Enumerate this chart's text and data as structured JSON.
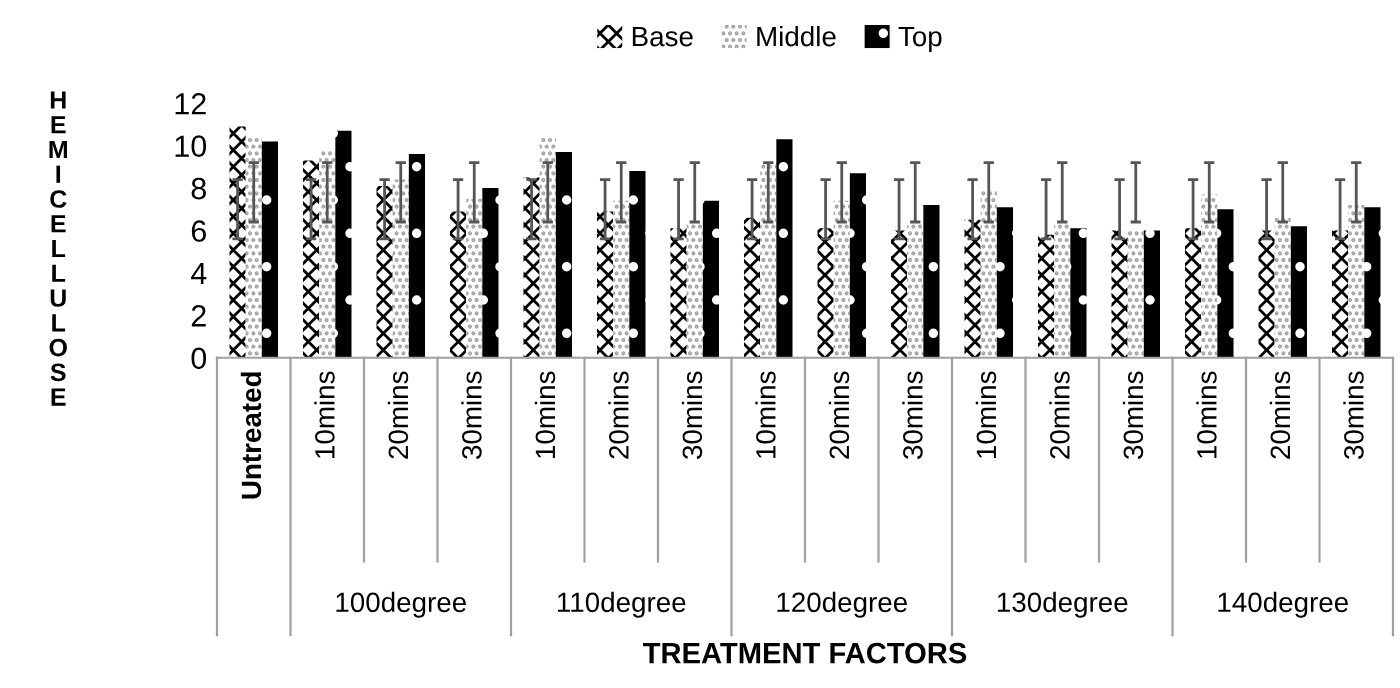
{
  "chart_data": {
    "type": "bar",
    "xlabel": "TREATMENT FACTORS",
    "ylabel": "HEMICELLULOSE",
    "categories": [
      "Untreated",
      "10mins",
      "20mins",
      "30mins",
      "10mins",
      "20mins",
      "30mins",
      "10mins",
      "20mins",
      "30mins",
      "10mins",
      "20mins",
      "30mins",
      "10mins",
      "20mins",
      "30mins"
    ],
    "annotations": [
      "100degree",
      "110degree",
      "120degree",
      "130degree",
      "140degree"
    ],
    "series": [
      {
        "name": "Base",
        "color": "#000000",
        "values": [
          10.9,
          9.3,
          8.1,
          6.9,
          8.5,
          6.9,
          6.1,
          6.6,
          6.1,
          6.0,
          6.5,
          5.8,
          6.0,
          6.1,
          6.0,
          6.0
        ],
        "errors": [
          [
            5.6,
            8.4
          ],
          [
            5.6,
            8.4
          ],
          [
            5.6,
            8.4
          ],
          [
            5.6,
            8.4
          ],
          [
            5.6,
            8.4
          ],
          [
            5.6,
            8.4
          ],
          [
            5.6,
            8.4
          ],
          [
            5.6,
            8.4
          ],
          [
            5.6,
            8.4
          ],
          [
            5.6,
            8.4
          ],
          [
            5.6,
            8.4
          ],
          [
            5.6,
            8.4
          ],
          [
            5.6,
            8.4
          ],
          [
            5.6,
            8.4
          ],
          [
            5.6,
            8.4
          ],
          [
            5.6,
            8.4
          ]
        ]
      },
      {
        "name": "Middle",
        "color": "#a0a0a0",
        "values": [
          10.4,
          9.8,
          8.4,
          7.5,
          10.4,
          7.4,
          6.4,
          9.2,
          7.4,
          6.4,
          7.9,
          6.4,
          6.0,
          7.7,
          6.6,
          7.2
        ],
        "errors": [
          [
            6.4,
            9.2
          ],
          [
            6.4,
            9.2
          ],
          [
            6.4,
            9.2
          ],
          [
            6.4,
            9.2
          ],
          [
            6.4,
            9.2
          ],
          [
            6.4,
            9.2
          ],
          [
            6.4,
            9.2
          ],
          [
            6.4,
            9.2
          ],
          [
            6.4,
            9.2
          ],
          [
            6.4,
            9.2
          ],
          [
            6.4,
            9.2
          ],
          [
            6.4,
            9.2
          ],
          [
            6.4,
            9.2
          ],
          [
            6.4,
            9.2
          ],
          [
            6.4,
            9.2
          ],
          [
            6.4,
            9.2
          ]
        ]
      },
      {
        "name": "Top",
        "color": "#000000",
        "values": [
          10.2,
          10.7,
          9.6,
          8.0,
          9.7,
          8.8,
          7.4,
          10.3,
          8.7,
          7.2,
          7.1,
          6.1,
          6.0,
          7.0,
          6.2,
          7.1
        ]
      }
    ],
    "ylim": [
      0,
      12
    ],
    "yticks": [
      0,
      2,
      4,
      6,
      8,
      10,
      12
    ],
    "grid": false,
    "legend": "top"
  }
}
